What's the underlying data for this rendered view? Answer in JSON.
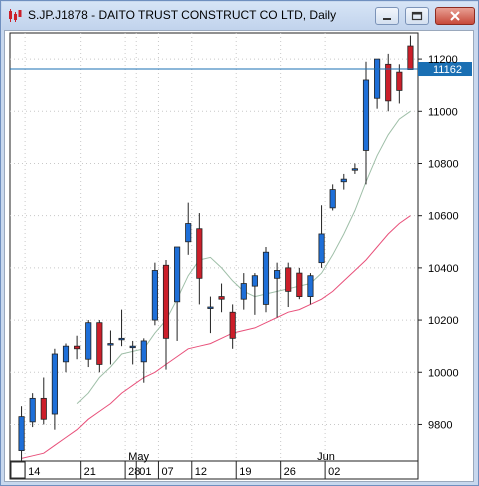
{
  "window": {
    "title": "S.JP.J1878 - DAITO TRUST CONSTRUCT CO LTD, Daily",
    "icon": "candlestick-chart-icon",
    "buttons": [
      "minimize-icon",
      "maximize-icon",
      "close-icon"
    ]
  },
  "chart_data": {
    "type": "candlestick",
    "y_ticks": [
      "11200",
      "11000",
      "10800",
      "10600",
      "10400",
      "10200",
      "10000",
      "9800"
    ],
    "ylim": [
      9660,
      11300
    ],
    "x_tick_labels": [
      "14",
      "21",
      "28",
      "01",
      "07",
      "12",
      "19",
      "26",
      "02"
    ],
    "month_labels": [
      "May",
      "Jun"
    ],
    "current_price_label": "11162",
    "current_price": 11162,
    "colors": {
      "up": "#1e6fd8",
      "down": "#cc1f2a",
      "ma_fast": "#9fbfa8",
      "ma_slow": "#e8507a",
      "price_line": "#1a6fb3",
      "label_bg": "#1a6fb3"
    },
    "candles": [
      {
        "o": 9700,
        "h": 9870,
        "l": 9660,
        "c": 9830
      },
      {
        "o": 9810,
        "h": 9920,
        "l": 9790,
        "c": 9900
      },
      {
        "o": 9900,
        "h": 9980,
        "l": 9800,
        "c": 9820
      },
      {
        "o": 9840,
        "h": 10090,
        "l": 9780,
        "c": 10070
      },
      {
        "o": 10040,
        "h": 10110,
        "l": 10000,
        "c": 10100
      },
      {
        "o": 10100,
        "h": 10140,
        "l": 10050,
        "c": 10090
      },
      {
        "o": 10050,
        "h": 10200,
        "l": 10020,
        "c": 10190
      },
      {
        "o": 10190,
        "h": 10200,
        "l": 10000,
        "c": 10030
      },
      {
        "o": 10110,
        "h": 10160,
        "l": 10030,
        "c": 10110
      },
      {
        "o": 10130,
        "h": 10240,
        "l": 10100,
        "c": 10130
      },
      {
        "o": 10100,
        "h": 10120,
        "l": 10030,
        "c": 10100
      },
      {
        "o": 10040,
        "h": 10130,
        "l": 9960,
        "c": 10120
      },
      {
        "o": 10200,
        "h": 10420,
        "l": 10180,
        "c": 10390
      },
      {
        "o": 10410,
        "h": 10430,
        "l": 10010,
        "c": 10130
      },
      {
        "o": 10270,
        "h": 10480,
        "l": 10120,
        "c": 10480
      },
      {
        "o": 10500,
        "h": 10650,
        "l": 10450,
        "c": 10570
      },
      {
        "o": 10550,
        "h": 10610,
        "l": 10260,
        "c": 10360
      },
      {
        "o": 10250,
        "h": 10290,
        "l": 10150,
        "c": 10250
      },
      {
        "o": 10290,
        "h": 10340,
        "l": 10230,
        "c": 10280
      },
      {
        "o": 10230,
        "h": 10260,
        "l": 10090,
        "c": 10130
      },
      {
        "o": 10280,
        "h": 10380,
        "l": 10240,
        "c": 10340
      },
      {
        "o": 10330,
        "h": 10380,
        "l": 10220,
        "c": 10370
      },
      {
        "o": 10260,
        "h": 10480,
        "l": 10230,
        "c": 10460
      },
      {
        "o": 10360,
        "h": 10420,
        "l": 10210,
        "c": 10390
      },
      {
        "o": 10400,
        "h": 10420,
        "l": 10250,
        "c": 10310
      },
      {
        "o": 10380,
        "h": 10400,
        "l": 10280,
        "c": 10290
      },
      {
        "o": 10290,
        "h": 10380,
        "l": 10260,
        "c": 10370
      },
      {
        "o": 10420,
        "h": 10640,
        "l": 10400,
        "c": 10530
      },
      {
        "o": 10630,
        "h": 10720,
        "l": 10620,
        "c": 10700
      },
      {
        "o": 10730,
        "h": 10760,
        "l": 10700,
        "c": 10740
      },
      {
        "o": 10780,
        "h": 10800,
        "l": 10760,
        "c": 10780
      },
      {
        "o": 10850,
        "h": 11190,
        "l": 10720,
        "c": 11120
      },
      {
        "o": 11050,
        "h": 11200,
        "l": 11010,
        "c": 11200
      },
      {
        "o": 11180,
        "h": 11220,
        "l": 11000,
        "c": 11040
      },
      {
        "o": 11150,
        "h": 11180,
        "l": 11030,
        "c": 11080
      },
      {
        "o": 11250,
        "h": 11290,
        "l": 11160,
        "c": 11160
      }
    ],
    "ma_fast": [
      null,
      null,
      null,
      null,
      null,
      9880,
      9920,
      9980,
      10020,
      10070,
      10080,
      10090,
      10150,
      10200,
      10280,
      10370,
      10430,
      10440,
      10400,
      10350,
      10310,
      10290,
      10300,
      10310,
      10320,
      10330,
      10340,
      10380,
      10450,
      10530,
      10620,
      10730,
      10830,
      10910,
      10970,
      11000
    ],
    "ma_slow": [
      9670,
      9680,
      9690,
      9720,
      9750,
      9780,
      9820,
      9850,
      9880,
      9920,
      9950,
      9980,
      10000,
      10030,
      10060,
      10090,
      10100,
      10110,
      10130,
      10150,
      10160,
      10170,
      10190,
      10210,
      10230,
      10240,
      10260,
      10280,
      10310,
      10350,
      10390,
      10430,
      10480,
      10530,
      10570,
      10600
    ]
  }
}
